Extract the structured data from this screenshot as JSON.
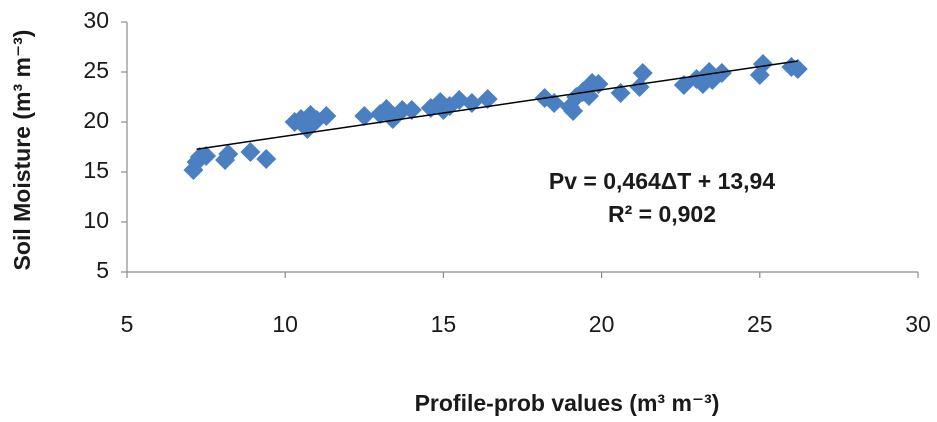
{
  "chart_data": {
    "type": "scatter",
    "x_label": "Profile-prob values (m³ m⁻³)",
    "y_label": "Soil Moisture (m³ m⁻³)",
    "annotations": [
      "Pv = 0,464ΔT + 13,94",
      "R² = 0,902"
    ],
    "color": "#4a7fc1",
    "xlim": [
      5,
      30
    ],
    "xticks": [
      5,
      10,
      15,
      20,
      25,
      30
    ],
    "ylim": [
      5,
      30
    ],
    "yticks": [
      5,
      10,
      15,
      20,
      25,
      30
    ],
    "grid": false,
    "x": [
      7.1,
      7.2,
      7.3,
      7.5,
      8.1,
      8.2,
      8.9,
      9.4,
      10.3,
      10.5,
      10.7,
      10.8,
      11.0,
      11.3,
      12.5,
      13.0,
      13.2,
      13.4,
      13.7,
      14.0,
      14.6,
      14.9,
      15.0,
      15.2,
      15.5,
      15.9,
      16.4,
      18.2,
      18.5,
      19.0,
      19.1,
      19.2,
      19.4,
      19.6,
      19.7,
      19.9,
      20.6,
      21.2,
      21.3,
      22.6,
      23.0,
      23.2,
      23.4,
      23.5,
      23.8,
      25.0,
      25.1,
      26.0,
      26.2
    ],
    "values": [
      15.2,
      16.0,
      16.5,
      16.6,
      16.2,
      16.8,
      17.0,
      16.3,
      20.0,
      20.3,
      19.3,
      20.7,
      20.2,
      20.6,
      20.6,
      20.8,
      21.3,
      20.3,
      21.2,
      21.2,
      21.4,
      22.0,
      21.2,
      21.6,
      22.2,
      21.9,
      22.3,
      22.4,
      21.9,
      21.5,
      21.1,
      22.5,
      23.0,
      22.6,
      23.9,
      23.8,
      22.9,
      23.5,
      24.9,
      23.7,
      24.3,
      23.8,
      25.0,
      24.2,
      24.9,
      24.7,
      25.8,
      25.5,
      25.3
    ],
    "trendline": {
      "x": [
        7.2,
        26.2
      ],
      "y": [
        17.28,
        26.1
      ],
      "color": "#000000"
    }
  }
}
